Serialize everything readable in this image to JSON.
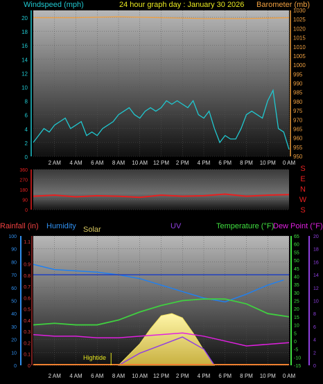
{
  "header": {
    "title": "24 hour graph day : January 30 2026",
    "wind_label": "Windspeed (mph)",
    "baro_label": "Barometer (mb)"
  },
  "chart_data": [
    {
      "type": "line",
      "panel": "wind",
      "series": [
        {
          "name": "Windspeed (mph)",
          "color": "#20c8d0",
          "x": [
            0,
            0.5,
            1,
            1.5,
            2,
            2.5,
            3,
            3.5,
            4,
            4.5,
            5,
            5.5,
            6,
            6.5,
            7,
            7.5,
            8,
            8.5,
            9,
            9.5,
            10,
            10.5,
            11,
            11.5,
            12,
            12.5,
            13,
            13.5,
            14,
            14.5,
            15,
            15.5,
            16,
            16.5,
            17,
            17.5,
            18,
            18.5,
            19,
            19.5,
            20,
            20.5,
            21,
            21.5,
            22,
            22.5,
            23,
            23.5,
            24
          ],
          "values": [
            2,
            3,
            4,
            3.5,
            4.5,
            5,
            5.5,
            4,
            4.5,
            5,
            3,
            3.5,
            3,
            4,
            4.5,
            5,
            6,
            6.5,
            7,
            6,
            5.5,
            6.5,
            7,
            6.5,
            7,
            8,
            7.5,
            8,
            7.5,
            7,
            8,
            6,
            5.5,
            6.5,
            4,
            2,
            3,
            2.5,
            2.5,
            4,
            6,
            6.5,
            6,
            5.5,
            8,
            9.5,
            4,
            3.5,
            1
          ]
        },
        {
          "name": "Barometer (mb)",
          "color": "#f0a040",
          "axis": "right",
          "x": [
            0,
            4,
            8,
            12,
            16,
            20,
            24
          ],
          "values": [
            1026,
            1026,
            1026.5,
            1026,
            1025.5,
            1025.5,
            1026
          ]
        }
      ],
      "ylim": [
        0,
        21
      ],
      "y2lim": [
        950,
        1030
      ],
      "yticks": [
        0,
        2,
        4,
        6,
        8,
        10,
        12,
        14,
        16,
        18,
        20
      ],
      "y2ticks": [
        950,
        955,
        960,
        965,
        970,
        975,
        980,
        985,
        990,
        995,
        1000,
        1005,
        1010,
        1015,
        1020,
        1025,
        1030
      ],
      "xticks": [
        "2 AM",
        "4 AM",
        "6 AM",
        "8 AM",
        "10 AM",
        "12 PM",
        "2 PM",
        "4 PM",
        "6 PM",
        "8 PM",
        "10 PM",
        "0 AM"
      ]
    },
    {
      "type": "line",
      "panel": "wind-direction",
      "series": [
        {
          "name": "Wind direction",
          "color": "#e82020",
          "x": [
            0,
            2,
            4,
            6,
            8,
            10,
            12,
            14,
            16,
            18,
            20,
            22,
            24
          ],
          "values": [
            120,
            130,
            115,
            125,
            120,
            110,
            130,
            120,
            125,
            140,
            120,
            130,
            135
          ]
        }
      ],
      "ylim": [
        0,
        360
      ],
      "yticks": [
        0,
        90,
        180,
        270,
        360
      ],
      "compass": [
        "S",
        "E",
        "N",
        "W",
        "S"
      ]
    },
    {
      "type": "line",
      "panel": "combined",
      "labels": {
        "rain": "Rainfall (in)",
        "humidity": "Humidity",
        "solar": "Solar",
        "uv": "UV",
        "temperature": "Temperature (°F)",
        "dewpoint": "Dew Point (°F)",
        "hightide": "Hightide"
      },
      "series": [
        {
          "name": "Humidity",
          "color": "#2080f0",
          "x": [
            0,
            2,
            4,
            6,
            8,
            10,
            12,
            14,
            16,
            18,
            20,
            22,
            23.5
          ],
          "values": [
            78,
            74,
            73,
            72,
            70,
            67,
            62,
            57,
            52,
            49,
            55,
            62,
            66
          ]
        },
        {
          "name": "Temperature (°F)",
          "color": "#40d040",
          "x": [
            0,
            2,
            4,
            6,
            8,
            10,
            12,
            14,
            16,
            18,
            20,
            22,
            24
          ],
          "values": [
            10,
            11,
            10,
            10,
            13,
            18,
            22,
            25,
            26,
            26,
            23,
            17,
            15
          ]
        },
        {
          "name": "Dew Point (°F)",
          "color": "#e020e0",
          "x": [
            0,
            2,
            4,
            6,
            8,
            10,
            12,
            14,
            16,
            18,
            20,
            22,
            24
          ],
          "values": [
            4,
            3,
            3,
            2,
            2,
            3,
            4,
            5,
            3,
            0,
            -3,
            -2,
            -1
          ]
        },
        {
          "name": "Solar",
          "color": "#f0e060",
          "x": [
            8,
            9,
            10,
            11,
            12,
            13,
            14,
            15,
            16,
            17
          ],
          "values": [
            0,
            5,
            10,
            17,
            23,
            24,
            22,
            15,
            7,
            0
          ]
        },
        {
          "name": "Rainfall (in)",
          "color": "#f08030",
          "x": [
            0,
            24
          ],
          "values": [
            0,
            0
          ]
        },
        {
          "name": "UV",
          "color": "#9040e0",
          "x": [
            8,
            10,
            12,
            14,
            16,
            17
          ],
          "values": [
            0,
            1.5,
            2.5,
            3.5,
            2,
            0
          ]
        }
      ],
      "y_rain_ticks": [
        "0",
        "0.1",
        "0.2",
        "0.3",
        "0.4",
        "0.5",
        "0.6",
        "0.7",
        "0.8",
        "0.9",
        "1",
        "1.1"
      ],
      "y_hum_ticks": [
        0,
        10,
        20,
        30,
        40,
        50,
        60,
        70,
        80,
        90,
        100
      ],
      "y_temp_ticks": [
        "-15",
        "-10",
        "-5",
        "0",
        "5",
        "10",
        "15",
        "20",
        "25",
        "30",
        "35",
        "40",
        "45",
        "50",
        "55",
        "60",
        "65"
      ],
      "y_dew_ticks": [
        0,
        2,
        4,
        6,
        8,
        10,
        12,
        14,
        16,
        18,
        20
      ],
      "xticks": [
        "2 AM",
        "4 AM",
        "6 AM",
        "8 AM",
        "10 AM",
        "12 PM",
        "2 PM",
        "4 PM",
        "6 PM",
        "8 PM",
        "10 PM",
        "0 AM"
      ]
    }
  ]
}
